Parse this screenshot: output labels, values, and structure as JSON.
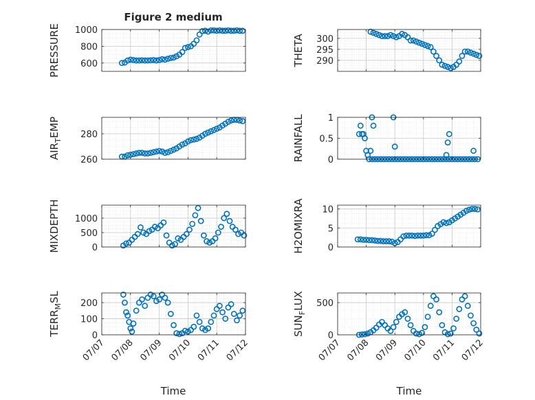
{
  "figure": {
    "title": "Figure 2 medium",
    "xlabel": "Time"
  },
  "chart_data": [
    {
      "type": "scatter",
      "id": "pressure",
      "ylabel": {
        "main": "PRESSURE",
        "sub": ""
      },
      "ylim": [
        500,
        1000
      ],
      "yticks": [
        600,
        800,
        1000
      ],
      "xlim": [
        0,
        5
      ],
      "xticks": [
        "07/07",
        "07/08",
        "07/09",
        "07/10",
        "07/11",
        "07/12"
      ],
      "show_xticklabels": false,
      "x": [
        0.7,
        0.8,
        0.9,
        1.0,
        1.1,
        1.2,
        1.3,
        1.4,
        1.5,
        1.6,
        1.7,
        1.8,
        1.9,
        2.0,
        2.1,
        2.2,
        2.3,
        2.4,
        2.5,
        2.6,
        2.7,
        2.8,
        2.9,
        3.0,
        3.1,
        3.2,
        3.3,
        3.4,
        3.5,
        3.6,
        3.7,
        3.8,
        3.9,
        4.0,
        4.1,
        4.2,
        4.3,
        4.4,
        4.5,
        4.6,
        4.7,
        4.8,
        4.9
      ],
      "y": [
        600,
        605,
        630,
        640,
        635,
        630,
        630,
        632,
        630,
        630,
        632,
        635,
        630,
        635,
        645,
        640,
        650,
        660,
        665,
        680,
        700,
        730,
        780,
        790,
        800,
        830,
        870,
        940,
        980,
        985,
        975,
        990,
        990,
        985,
        990,
        985,
        985,
        990,
        985,
        985,
        990,
        985,
        985
      ]
    },
    {
      "type": "scatter",
      "id": "theta",
      "ylabel": {
        "main": "THETA",
        "sub": ""
      },
      "ylim": [
        285,
        304
      ],
      "yticks": [
        290,
        295,
        300
      ],
      "xlim": [
        0,
        5
      ],
      "xticks": [
        "07/07",
        "07/08",
        "07/09",
        "07/10",
        "07/11",
        "07/12"
      ],
      "show_xticklabels": false,
      "x": [
        1.15,
        1.25,
        1.35,
        1.45,
        1.55,
        1.65,
        1.75,
        1.85,
        1.95,
        2.05,
        2.15,
        2.25,
        2.35,
        2.45,
        2.55,
        2.65,
        2.75,
        2.85,
        2.95,
        3.05,
        3.15,
        3.25,
        3.35,
        3.45,
        3.55,
        3.65,
        3.75,
        3.85,
        3.95,
        4.05,
        4.15,
        4.25,
        4.35,
        4.45,
        4.55,
        4.65,
        4.75,
        4.85,
        4.95
      ],
      "y": [
        303,
        302.5,
        302,
        301.5,
        301,
        301,
        301,
        301.5,
        301,
        300.5,
        301,
        302,
        301.5,
        300.5,
        299,
        299,
        298.5,
        298,
        297.5,
        297,
        296.5,
        296,
        294,
        292,
        290,
        288,
        287.5,
        287,
        286.5,
        287,
        288,
        289.5,
        292,
        294,
        294,
        293.5,
        293,
        292.5,
        292
      ]
    },
    {
      "type": "scatter",
      "id": "air_temp",
      "ylabel": {
        "main": "AIR",
        "sub": "T",
        "tail": "EMP"
      },
      "ylim": [
        260,
        293
      ],
      "yticks": [
        260,
        280
      ],
      "xlim": [
        0,
        5
      ],
      "xticks": [
        "07/07",
        "07/08",
        "07/09",
        "07/10",
        "07/11",
        "07/12"
      ],
      "show_xticklabels": false,
      "x": [
        0.7,
        0.8,
        0.9,
        1.0,
        1.1,
        1.2,
        1.3,
        1.4,
        1.5,
        1.6,
        1.7,
        1.8,
        1.9,
        2.0,
        2.1,
        2.2,
        2.3,
        2.4,
        2.5,
        2.6,
        2.7,
        2.8,
        2.9,
        3.0,
        3.1,
        3.2,
        3.3,
        3.4,
        3.5,
        3.6,
        3.7,
        3.8,
        3.9,
        4.0,
        4.1,
        4.2,
        4.3,
        4.4,
        4.5,
        4.6,
        4.7,
        4.8,
        4.9
      ],
      "y": [
        262,
        262,
        263,
        263.5,
        264,
        264.5,
        265,
        265,
        264.5,
        264.5,
        265,
        265.5,
        266,
        266.5,
        266,
        265,
        265.5,
        266.5,
        267.5,
        268.5,
        270,
        271.5,
        272.5,
        274,
        275,
        275.5,
        276,
        277,
        278.5,
        280,
        281,
        282,
        283,
        284,
        285,
        286.5,
        288,
        289.5,
        290.5,
        291,
        291,
        290.5,
        290
      ]
    },
    {
      "type": "scatter",
      "id": "rainfall",
      "ylabel": {
        "main": "RAINFALL",
        "sub": ""
      },
      "ylim": [
        0,
        1
      ],
      "yticks": [
        0,
        0.5,
        1
      ],
      "xlim": [
        0,
        5
      ],
      "xticks": [
        "07/07",
        "07/08",
        "07/09",
        "07/10",
        "07/11",
        "07/12"
      ],
      "show_xticklabels": false,
      "x": [
        0.75,
        0.8,
        0.85,
        0.9,
        0.95,
        1.0,
        1.05,
        1.1,
        1.15,
        1.2,
        1.3,
        1.4,
        1.5,
        1.6,
        1.7,
        1.8,
        1.9,
        2.0,
        2.1,
        2.2,
        2.3,
        2.4,
        2.5,
        2.6,
        2.7,
        2.8,
        2.9,
        3.0,
        3.1,
        3.2,
        3.3,
        3.4,
        3.5,
        3.6,
        3.7,
        3.8,
        3.9,
        4.0,
        4.1,
        4.2,
        4.3,
        4.4,
        4.5,
        4.6,
        4.7,
        4.8,
        4.9,
        1.2,
        1.25,
        1.95,
        2.0,
        3.8,
        3.85,
        3.9,
        4.75
      ],
      "y": [
        0.6,
        0.8,
        0.6,
        0.6,
        0.5,
        0.2,
        0.1,
        0.0,
        0.2,
        0.0,
        0.0,
        0.0,
        0.0,
        0.0,
        0.0,
        0.0,
        0.0,
        0.0,
        0.0,
        0.0,
        0.0,
        0.0,
        0.0,
        0.0,
        0.0,
        0.0,
        0.0,
        0.0,
        0.0,
        0.0,
        0.0,
        0.0,
        0.0,
        0.0,
        0.0,
        0.0,
        0.0,
        0.0,
        0.0,
        0.0,
        0.0,
        0.0,
        0.0,
        0.0,
        0.0,
        0.0,
        0.0,
        1.0,
        0.8,
        1.0,
        0.3,
        0.1,
        0.4,
        0.6,
        0.2
      ]
    },
    {
      "type": "scatter",
      "id": "mixdepth",
      "ylabel": {
        "main": "MIXDEPTH",
        "sub": ""
      },
      "ylim": [
        0,
        1450
      ],
      "yticks": [
        0,
        500,
        1000
      ],
      "xlim": [
        0,
        5
      ],
      "xticks": [
        "07/07",
        "07/08",
        "07/09",
        "07/10",
        "07/11",
        "07/12"
      ],
      "show_xticklabels": false,
      "x": [
        0.75,
        0.85,
        0.95,
        1.05,
        1.15,
        1.25,
        1.35,
        1.45,
        1.55,
        1.65,
        1.75,
        1.85,
        1.95,
        2.05,
        2.15,
        2.25,
        2.35,
        2.45,
        2.55,
        2.65,
        2.75,
        2.85,
        2.95,
        3.05,
        3.15,
        3.25,
        3.35,
        3.45,
        3.55,
        3.65,
        3.75,
        3.85,
        3.95,
        4.05,
        4.15,
        4.25,
        4.35,
        4.45,
        4.55,
        4.65,
        4.75,
        4.85,
        4.95
      ],
      "y": [
        50,
        120,
        150,
        250,
        350,
        450,
        680,
        500,
        450,
        550,
        600,
        700,
        650,
        750,
        850,
        400,
        150,
        50,
        100,
        300,
        250,
        350,
        450,
        600,
        800,
        1100,
        1350,
        900,
        400,
        200,
        150,
        200,
        300,
        500,
        700,
        1000,
        1150,
        900,
        700,
        600,
        450,
        500,
        400
      ]
    },
    {
      "type": "scatter",
      "id": "h2omixra",
      "ylabel": {
        "main": "H2OMIXRA",
        "sub": ""
      },
      "ylim": [
        0,
        11
      ],
      "yticks": [
        0,
        5,
        10
      ],
      "xlim": [
        0,
        5
      ],
      "xticks": [
        "07/07",
        "07/08",
        "07/09",
        "07/10",
        "07/11",
        "07/12"
      ],
      "show_xticklabels": false,
      "x": [
        0.7,
        0.8,
        0.9,
        1.0,
        1.1,
        1.2,
        1.3,
        1.4,
        1.5,
        1.6,
        1.7,
        1.8,
        1.9,
        2.0,
        2.1,
        2.2,
        2.3,
        2.4,
        2.5,
        2.6,
        2.7,
        2.8,
        2.9,
        3.0,
        3.1,
        3.2,
        3.3,
        3.4,
        3.5,
        3.6,
        3.7,
        3.8,
        3.9,
        4.0,
        4.1,
        4.2,
        4.3,
        4.4,
        4.5,
        4.6,
        4.7,
        4.8,
        4.9
      ],
      "y": [
        2,
        2,
        1.9,
        1.9,
        1.8,
        1.8,
        1.7,
        1.6,
        1.6,
        1.5,
        1.5,
        1.5,
        1.4,
        1.0,
        1.3,
        2.0,
        2.8,
        3.0,
        3.0,
        3.0,
        2.9,
        3.0,
        3.0,
        3.0,
        3.1,
        3.1,
        3.5,
        4.5,
        5.5,
        6.0,
        6.5,
        6.3,
        6.5,
        7.0,
        7.5,
        8.0,
        8.5,
        9.0,
        9.5,
        9.8,
        10,
        10,
        9.9
      ]
    },
    {
      "type": "scatter",
      "id": "terr_msl",
      "ylabel": {
        "main": "TERR",
        "sub": "M",
        "tail": "SL"
      },
      "ylim": [
        0,
        260
      ],
      "yticks": [
        0,
        100,
        200
      ],
      "xlim": [
        0,
        5
      ],
      "xticks": [
        "07/07",
        "07/08",
        "07/09",
        "07/10",
        "07/11",
        "07/12"
      ],
      "show_xticklabels": true,
      "x": [
        0.75,
        0.8,
        0.85,
        0.9,
        0.95,
        1.0,
        1.05,
        1.1,
        1.2,
        1.3,
        1.4,
        1.5,
        1.6,
        1.7,
        1.8,
        1.9,
        2.0,
        2.1,
        2.2,
        2.3,
        2.4,
        2.5,
        2.6,
        2.7,
        2.8,
        2.9,
        3.0,
        3.1,
        3.2,
        3.3,
        3.4,
        3.5,
        3.6,
        3.7,
        3.8,
        3.9,
        4.0,
        4.1,
        4.2,
        4.3,
        4.4,
        4.5,
        4.6,
        4.7,
        4.8,
        4.9
      ],
      "y": [
        250,
        200,
        140,
        120,
        80,
        40,
        20,
        70,
        150,
        200,
        220,
        180,
        230,
        250,
        240,
        210,
        220,
        250,
        230,
        200,
        130,
        60,
        10,
        5,
        10,
        25,
        20,
        30,
        50,
        120,
        80,
        40,
        30,
        40,
        80,
        120,
        160,
        180,
        140,
        100,
        170,
        190,
        130,
        90,
        120,
        150
      ]
    },
    {
      "type": "scatter",
      "id": "sun_flux",
      "ylabel": {
        "main": "SUN",
        "sub": "F",
        "tail": "LUX"
      },
      "ylim": [
        0,
        650
      ],
      "yticks": [
        0,
        500
      ],
      "xlim": [
        0,
        5
      ],
      "xticks": [
        "07/07",
        "07/08",
        "07/09",
        "07/10",
        "07/11",
        "07/12"
      ],
      "show_xticklabels": true,
      "x": [
        0.75,
        0.85,
        0.95,
        1.05,
        1.15,
        1.25,
        1.35,
        1.45,
        1.55,
        1.65,
        1.75,
        1.85,
        1.95,
        2.05,
        2.15,
        2.25,
        2.35,
        2.45,
        2.55,
        2.65,
        2.75,
        2.85,
        2.95,
        3.05,
        3.15,
        3.25,
        3.35,
        3.45,
        3.55,
        3.65,
        3.75,
        3.85,
        3.95,
        4.05,
        4.15,
        4.25,
        4.35,
        4.45,
        4.55,
        4.65,
        4.75,
        4.85,
        4.95
      ],
      "y": [
        0,
        5,
        10,
        20,
        40,
        70,
        110,
        160,
        200,
        150,
        100,
        60,
        120,
        200,
        280,
        320,
        350,
        250,
        150,
        60,
        20,
        10,
        30,
        120,
        280,
        450,
        600,
        550,
        350,
        150,
        40,
        10,
        20,
        100,
        250,
        400,
        550,
        600,
        450,
        300,
        180,
        80,
        20
      ]
    }
  ]
}
